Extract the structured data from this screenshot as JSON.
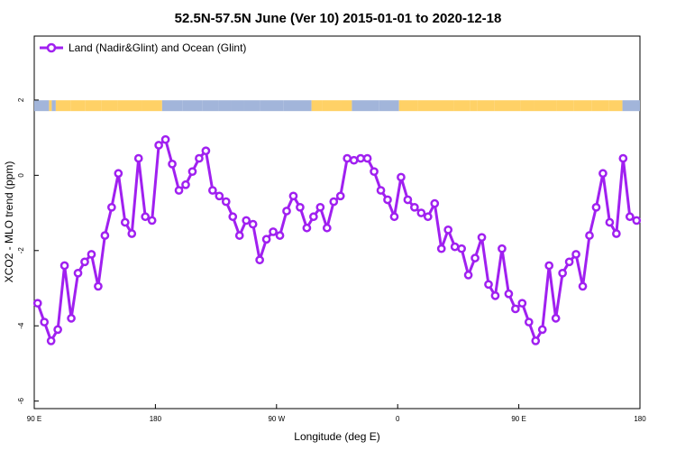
{
  "chart_data": {
    "type": "line",
    "title": "52.5N-57.5N June (Ver 10)   2015-01-01 to 2020-12-18",
    "xlabel": "Longitude (deg E)",
    "ylabel": "XCO2 - MLO trend (ppm)",
    "xlim": [
      90,
      540
    ],
    "ylim": [
      -6.2,
      3.7
    ],
    "x_ticks": [
      {
        "value": 90,
        "label": "90 E"
      },
      {
        "value": 180,
        "label": "180"
      },
      {
        "value": 270,
        "label": "90 W"
      },
      {
        "value": 360,
        "label": "0"
      },
      {
        "value": 450,
        "label": "90 E"
      },
      {
        "value": 540,
        "label": "180"
      }
    ],
    "y_ticks": [
      {
        "value": 2,
        "label": "2"
      },
      {
        "value": 0,
        "label": "0"
      },
      {
        "value": -2,
        "label": "-2"
      },
      {
        "value": -4,
        "label": "-4"
      },
      {
        "value": -6,
        "label": "-6"
      }
    ],
    "legend": {
      "position": "top-left"
    },
    "colors": {
      "series": "#a020f0",
      "land": "#ffd166",
      "ocean": "#a2b5da"
    },
    "series": [
      {
        "name": "Land (Nadir&Glint) and Ocean (Glint)",
        "x": [
          92.5,
          97.5,
          102.5,
          107.5,
          112.5,
          117.5,
          122.5,
          127.5,
          132.5,
          137.5,
          142.5,
          147.5,
          152.5,
          157.5,
          162.5,
          167.5,
          172.5,
          177.5,
          182.5,
          187.5,
          192.5,
          197.5,
          202.5,
          207.5,
          212.5,
          217.5,
          222.5,
          227.5,
          232.5,
          237.5,
          242.5,
          247.5,
          252.5,
          257.5,
          262.5,
          267.5,
          272.5,
          277.5,
          282.5,
          287.5,
          292.5,
          297.5,
          302.5,
          307.5,
          312.5,
          317.5,
          322.5,
          327.5,
          332.5,
          337.5,
          342.5,
          347.5,
          352.5,
          357.5,
          362.5,
          367.5,
          372.5,
          377.5,
          382.5,
          387.5,
          392.5,
          397.5,
          402.5,
          407.5,
          412.5,
          417.5,
          422.5,
          427.5,
          432.5,
          437.5,
          442.5,
          447.5,
          452.5,
          457.5,
          462.5,
          467.5,
          472.5,
          477.5,
          482.5,
          487.5,
          492.5,
          497.5,
          502.5,
          507.5,
          512.5,
          517.5,
          522.5,
          527.5,
          532.5,
          537.5
        ],
        "y": [
          -3.4,
          -3.9,
          -4.4,
          -4.1,
          -2.4,
          -3.8,
          -2.6,
          -2.3,
          -2.1,
          -2.95,
          -1.6,
          -0.85,
          0.05,
          -1.25,
          -1.55,
          0.45,
          -1.1,
          -1.2,
          0.8,
          0.95,
          0.3,
          -0.4,
          -0.25,
          0.1,
          0.45,
          0.65,
          -0.4,
          -0.55,
          -0.7,
          -1.1,
          -1.6,
          -1.2,
          -1.3,
          -2.25,
          -1.7,
          -1.5,
          -1.6,
          -0.95,
          -0.55,
          -0.85,
          -1.4,
          -1.1,
          -0.85,
          -1.4,
          -0.7,
          -0.55,
          0.45,
          0.4,
          0.45,
          0.45,
          0.1,
          -0.4,
          -0.65,
          -1.1,
          -0.05,
          -0.65,
          -0.85,
          -1.0,
          -1.1,
          -0.75,
          -1.95,
          -1.45,
          -1.9,
          -1.95,
          -2.65,
          -2.2,
          -1.65,
          -2.9,
          -3.2,
          -1.95,
          -3.15,
          -3.55,
          -3.4,
          -3.9,
          -4.4,
          -4.1,
          -2.4,
          -3.8,
          -2.6,
          -2.3,
          -2.1,
          -2.95,
          -1.6,
          -0.85,
          0.05,
          -1.25,
          -1.55,
          0.45,
          -1.1,
          -1.2
        ]
      }
    ],
    "surface_strip": {
      "level": 1.85,
      "x": [
        90,
        101,
        103,
        106,
        117,
        128,
        140,
        152,
        170,
        185,
        200,
        215,
        227,
        236,
        246,
        258,
        275,
        296,
        304,
        318,
        326,
        346,
        361,
        375,
        390,
        402,
        414,
        419,
        432,
        451,
        461,
        478,
        491,
        504,
        517,
        527,
        540
      ],
      "type": [
        "ocean",
        "land",
        "ocean",
        "land",
        "land",
        "land",
        "land",
        "land",
        "land",
        "ocean",
        "ocean",
        "ocean",
        "ocean",
        "ocean",
        "ocean",
        "ocean",
        "ocean",
        "land",
        "land",
        "land",
        "ocean",
        "ocean",
        "land",
        "land",
        "land",
        "land",
        "land",
        "land",
        "land",
        "land",
        "land",
        "land",
        "land",
        "land",
        "land",
        "ocean",
        "ocean"
      ]
    }
  }
}
